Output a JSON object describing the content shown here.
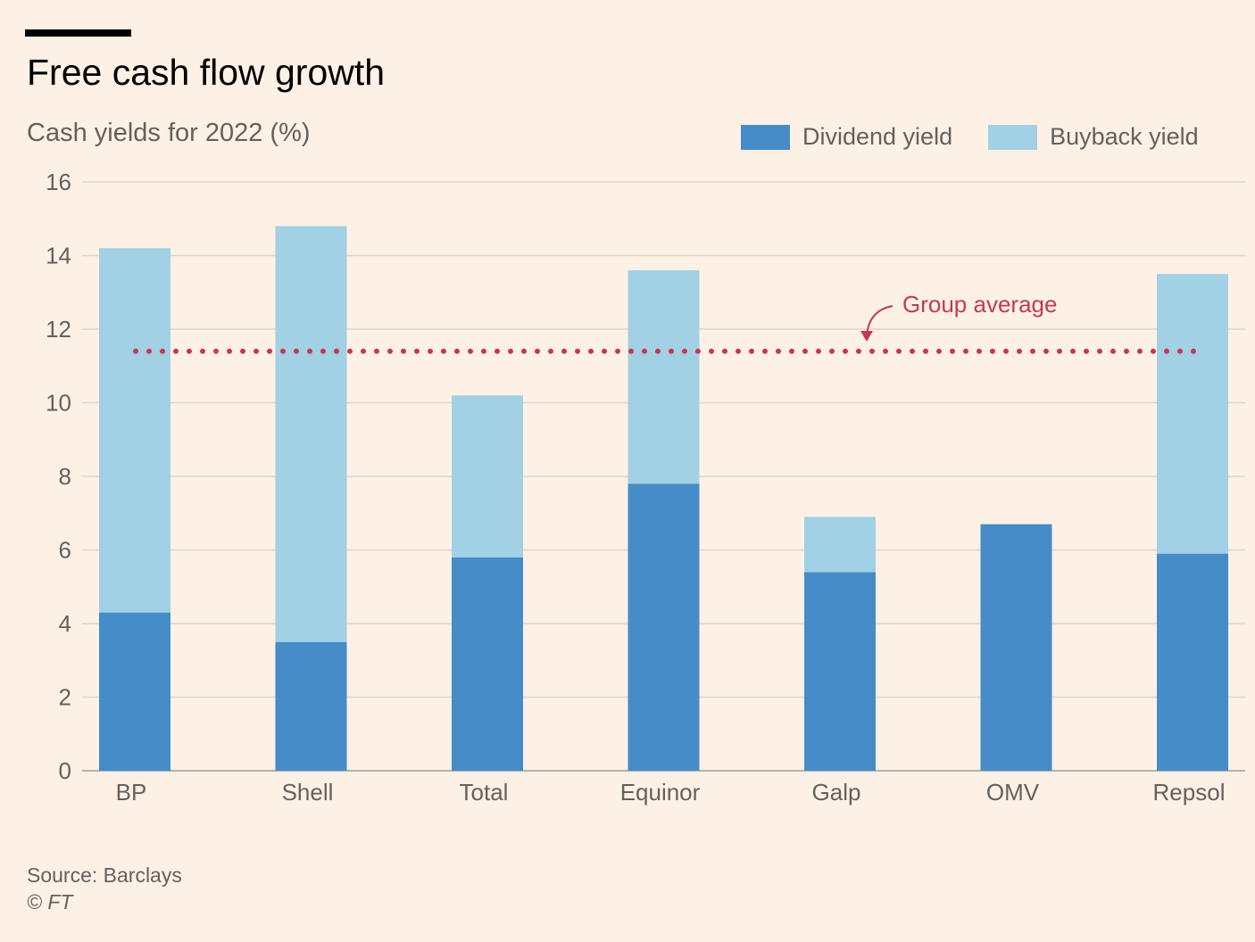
{
  "header": {
    "title": "Free cash flow growth",
    "subtitle": "Cash yields for 2022 (%)"
  },
  "legend": {
    "dividend_label": "Dividend yield",
    "buyback_label": "Buyback yield"
  },
  "annotation": {
    "label": "Group average"
  },
  "footer": {
    "source": "Source: Barclays",
    "copyright": "© FT"
  },
  "colors": {
    "background": "#fdf1e6",
    "dividend": "#458cc8",
    "buyback": "#a2d0e4",
    "average": "#c33a4f",
    "grid": "#dcd6d0",
    "axis_text": "#66605c"
  },
  "chart_data": {
    "type": "bar",
    "stacked": true,
    "categories": [
      "BP",
      "Shell",
      "Total",
      "Equinor",
      "Galp",
      "OMV",
      "Repsol"
    ],
    "series": [
      {
        "name": "Dividend yield",
        "values": [
          4.3,
          3.5,
          5.8,
          7.8,
          5.4,
          6.7,
          5.9
        ]
      },
      {
        "name": "Buyback yield",
        "values": [
          9.9,
          11.3,
          4.4,
          5.8,
          1.5,
          0.0,
          7.6
        ]
      }
    ],
    "title": "Free cash flow growth",
    "subtitle": "Cash yields for 2022 (%)",
    "ylim": [
      0,
      16
    ],
    "yticks": [
      0,
      2,
      4,
      6,
      8,
      10,
      12,
      14,
      16
    ],
    "grid": true,
    "legend_position": "top-right",
    "reference_line": {
      "label": "Group average",
      "value": 11.4,
      "style": "dotted"
    }
  }
}
